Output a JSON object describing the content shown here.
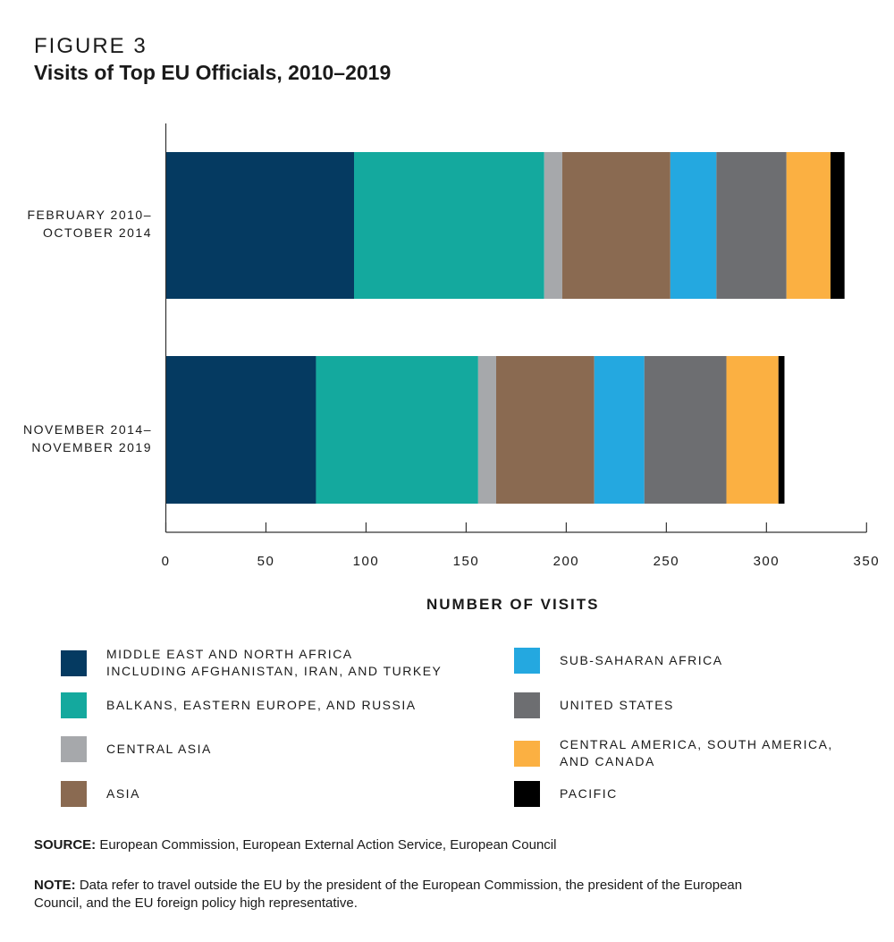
{
  "figure_label": "FIGURE 3",
  "chart_data": {
    "type": "bar",
    "orientation": "horizontal",
    "stacked": true,
    "title": "Visits of Top EU Officials, 2010–2019",
    "xlabel": "NUMBER OF VISITS",
    "xlim": [
      0,
      350
    ],
    "xticks": [
      "0",
      "50",
      "100",
      "150",
      "200",
      "250",
      "300",
      "350"
    ],
    "grid": false,
    "legend_position": "bottom",
    "categories": [
      [
        "FEBRUARY 2010–",
        "OCTOBER 2014"
      ],
      [
        "NOVEMBER 2014–",
        "NOVEMBER 2019"
      ]
    ],
    "series": [
      {
        "name": "MIDDLE EAST AND NORTH AFRICA INCLUDING AFGHANISTAN, IRAN, AND TURKEY",
        "lines": [
          "MIDDLE EAST AND NORTH AFRICA",
          "INCLUDING AFGHANISTAN, IRAN, AND TURKEY"
        ],
        "color": "#053a61",
        "values": [
          94,
          75
        ]
      },
      {
        "name": "BALKANS, EASTERN EUROPE, AND RUSSIA",
        "lines": [
          "BALKANS, EASTERN EUROPE, AND RUSSIA"
        ],
        "color": "#14a99e",
        "values": [
          95,
          81
        ]
      },
      {
        "name": "CENTRAL ASIA",
        "lines": [
          "CENTRAL ASIA"
        ],
        "color": "#a6a8ab",
        "values": [
          9,
          9
        ]
      },
      {
        "name": "ASIA",
        "lines": [
          "ASIA"
        ],
        "color": "#8a6a51",
        "values": [
          54,
          49
        ]
      },
      {
        "name": "SUB-SAHARAN AFRICA",
        "lines": [
          "SUB-SAHARAN AFRICA"
        ],
        "color": "#24a8e0",
        "values": [
          23,
          25
        ]
      },
      {
        "name": "UNITED STATES",
        "lines": [
          "UNITED STATES"
        ],
        "color": "#6d6e71",
        "values": [
          35,
          41
        ]
      },
      {
        "name": "CENTRAL AMERICA, SOUTH AMERICA, AND CANADA",
        "lines": [
          "CENTRAL AMERICA, SOUTH AMERICA,",
          "AND CANADA"
        ],
        "color": "#fbb042",
        "values": [
          22,
          26
        ]
      },
      {
        "name": "PACIFIC",
        "lines": [
          "PACIFIC"
        ],
        "color": "#000000",
        "values": [
          7,
          3
        ]
      }
    ]
  },
  "source": {
    "label": "SOURCE:",
    "text": " European Commission, European External Action Service, European Council"
  },
  "note": {
    "label": "NOTE:",
    "text": " Data refer to travel outside the EU by the president of the European Commission, the president of the European Council, and the EU foreign policy high representative."
  }
}
